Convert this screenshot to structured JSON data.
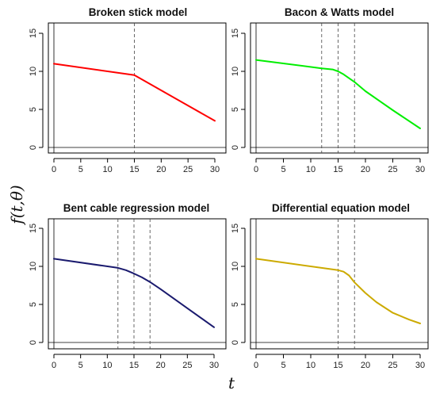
{
  "figure": {
    "ylabel": "f(t,θ)",
    "xlabel": "t"
  },
  "chart_data": [
    {
      "type": "line",
      "title": "Broken stick model",
      "xlim": [
        0,
        30
      ],
      "ylim": [
        0,
        15
      ],
      "xticks": [
        0,
        5,
        10,
        15,
        20,
        25,
        30
      ],
      "yticks": [
        0,
        5,
        10,
        15
      ],
      "color": "#ff0000",
      "vlines": [
        15
      ],
      "series": [
        {
          "x": [
            0,
            15,
            30
          ],
          "y": [
            11,
            9.5,
            3.5
          ]
        }
      ]
    },
    {
      "type": "line",
      "title": "Bacon & Watts model",
      "xlim": [
        0,
        30
      ],
      "ylim": [
        0,
        15
      ],
      "xticks": [
        0,
        5,
        10,
        15,
        20,
        25,
        30
      ],
      "yticks": [
        0,
        5,
        10,
        15
      ],
      "color": "#00ee00",
      "vlines": [
        12,
        15,
        18
      ],
      "series": [
        {
          "x": [
            0,
            12,
            14,
            15,
            16,
            18,
            20,
            25,
            30
          ],
          "y": [
            11.5,
            10.4,
            10.25,
            10.0,
            9.6,
            8.6,
            7.4,
            4.9,
            2.5
          ]
        }
      ]
    },
    {
      "type": "line",
      "title": "Bent cable regression model",
      "xlim": [
        0,
        30
      ],
      "ylim": [
        0,
        15
      ],
      "xticks": [
        0,
        5,
        10,
        15,
        20,
        25,
        30
      ],
      "yticks": [
        0,
        5,
        10,
        15
      ],
      "color": "#1a1a6e",
      "vlines": [
        12,
        15,
        18
      ],
      "series": [
        {
          "x": [
            0,
            12,
            13.5,
            15,
            16.5,
            18,
            20,
            25,
            30
          ],
          "y": [
            11,
            9.8,
            9.5,
            9.05,
            8.55,
            7.95,
            7.0,
            4.5,
            2.0
          ]
        }
      ]
    },
    {
      "type": "line",
      "title": "Differential equation model",
      "xlim": [
        0,
        30
      ],
      "ylim": [
        0,
        15
      ],
      "xticks": [
        0,
        5,
        10,
        15,
        20,
        25,
        30
      ],
      "yticks": [
        0,
        5,
        10,
        15
      ],
      "color": "#ccaa00",
      "vlines": [
        15,
        18
      ],
      "series": [
        {
          "x": [
            0,
            15,
            16,
            17,
            18,
            20,
            22,
            25,
            28,
            30
          ],
          "y": [
            11,
            9.5,
            9.3,
            8.8,
            7.9,
            6.5,
            5.3,
            3.9,
            3.0,
            2.5
          ]
        }
      ]
    }
  ]
}
